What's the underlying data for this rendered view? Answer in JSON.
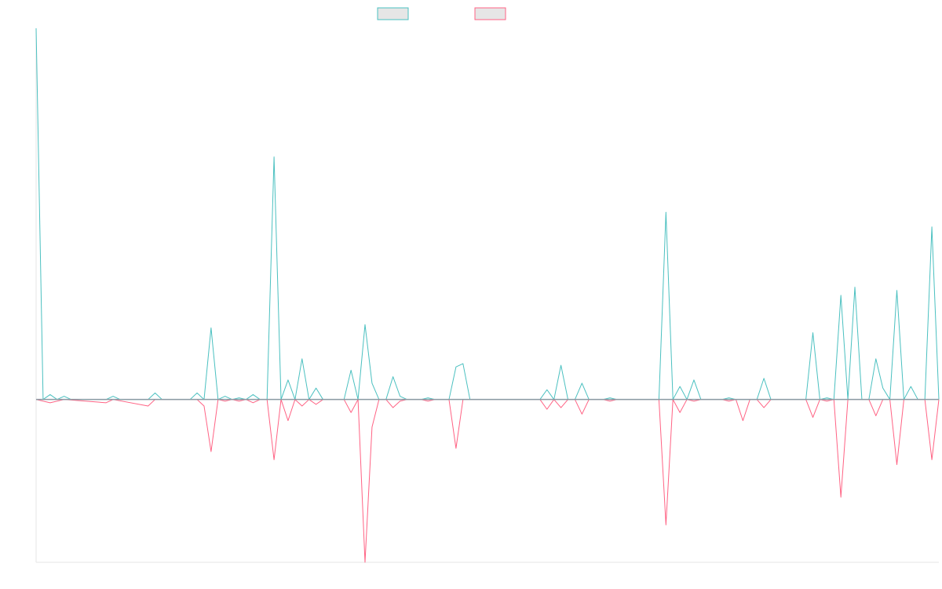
{
  "chart_data": {
    "type": "line",
    "title": "",
    "xlabel": "",
    "ylabel": "",
    "x_count": 130,
    "ylim": [
      -1,
      2.28
    ],
    "grid": false,
    "legend": {
      "position": "top-center"
    },
    "zero_line": true,
    "series": [
      {
        "key": "positive",
        "color": "#4bc0c0",
        "fill": "#e6e6e6",
        "points": [
          [
            0,
            2.28
          ],
          [
            1,
            0.0
          ],
          [
            2,
            0.03
          ],
          [
            3,
            0.0
          ],
          [
            4,
            0.02
          ],
          [
            5,
            0.0
          ],
          [
            10,
            0.0
          ],
          [
            11,
            0.02
          ],
          [
            12,
            0.0
          ],
          [
            16,
            0.0
          ],
          [
            17,
            0.04
          ],
          [
            18,
            0.0
          ],
          [
            22,
            0.0
          ],
          [
            23,
            0.04
          ],
          [
            24,
            0.0
          ],
          [
            25,
            0.44
          ],
          [
            26,
            0.0
          ],
          [
            27,
            0.02
          ],
          [
            28,
            0.0
          ],
          [
            29,
            0.01
          ],
          [
            30,
            0.0
          ],
          [
            31,
            0.03
          ],
          [
            32,
            0.0
          ],
          [
            33,
            0.0
          ],
          [
            34,
            1.49
          ],
          [
            35,
            0.0
          ],
          [
            36,
            0.12
          ],
          [
            37,
            0.0
          ],
          [
            38,
            0.25
          ],
          [
            39,
            0.0
          ],
          [
            40,
            0.07
          ],
          [
            41,
            0.0
          ],
          [
            44,
            0.0
          ],
          [
            45,
            0.18
          ],
          [
            46,
            0.0
          ],
          [
            47,
            0.46
          ],
          [
            48,
            0.1
          ],
          [
            49,
            0.0
          ],
          [
            50,
            0.0
          ],
          [
            51,
            0.14
          ],
          [
            52,
            0.02
          ],
          [
            53,
            0.0
          ],
          [
            55,
            0.0
          ],
          [
            56,
            0.01
          ],
          [
            57,
            0.0
          ],
          [
            59,
            0.0
          ],
          [
            60,
            0.2
          ],
          [
            61,
            0.22
          ],
          [
            62,
            0.0
          ],
          [
            72,
            0.0
          ],
          [
            73,
            0.06
          ],
          [
            74,
            0.0
          ],
          [
            75,
            0.21
          ],
          [
            76,
            0.0
          ],
          [
            77,
            0.0
          ],
          [
            78,
            0.1
          ],
          [
            79,
            0.0
          ],
          [
            81,
            0.0
          ],
          [
            82,
            0.01
          ],
          [
            83,
            0.0
          ],
          [
            89,
            0.0
          ],
          [
            90,
            1.15
          ],
          [
            91,
            0.0
          ],
          [
            92,
            0.08
          ],
          [
            93,
            0.0
          ],
          [
            94,
            0.12
          ],
          [
            95,
            0.0
          ],
          [
            98,
            0.0
          ],
          [
            99,
            0.01
          ],
          [
            100,
            0.0
          ],
          [
            103,
            0.0
          ],
          [
            104,
            0.13
          ],
          [
            105,
            0.0
          ],
          [
            110,
            0.0
          ],
          [
            111,
            0.41
          ],
          [
            112,
            0.0
          ],
          [
            113,
            0.01
          ],
          [
            114,
            0.0
          ],
          [
            115,
            0.64
          ],
          [
            116,
            0.0
          ],
          [
            117,
            0.69
          ],
          [
            118,
            0.0
          ],
          [
            119,
            0.0
          ],
          [
            120,
            0.25
          ],
          [
            121,
            0.07
          ],
          [
            122,
            0.0
          ],
          [
            123,
            0.67
          ],
          [
            124,
            0.0
          ],
          [
            125,
            0.08
          ],
          [
            126,
            0.0
          ],
          [
            127,
            0.0
          ],
          [
            128,
            1.06
          ],
          [
            129,
            0.0
          ]
        ]
      },
      {
        "key": "negative",
        "color": "#ff6384",
        "fill": "#e6e6e6",
        "points": [
          [
            0,
            0.0
          ],
          [
            2,
            -0.02
          ],
          [
            4,
            0.0
          ],
          [
            10,
            -0.02
          ],
          [
            11,
            0.0
          ],
          [
            16,
            -0.04
          ],
          [
            17,
            0.0
          ],
          [
            22,
            0.0
          ],
          [
            23,
            0.0
          ],
          [
            24,
            -0.04
          ],
          [
            25,
            -0.32
          ],
          [
            26,
            0.0
          ],
          [
            27,
            -0.01
          ],
          [
            28,
            0.0
          ],
          [
            29,
            -0.01
          ],
          [
            30,
            0.0
          ],
          [
            31,
            -0.02
          ],
          [
            32,
            0.0
          ],
          [
            33,
            0.0
          ],
          [
            34,
            -0.37
          ],
          [
            35,
            0.0
          ],
          [
            36,
            -0.13
          ],
          [
            37,
            0.0
          ],
          [
            38,
            -0.04
          ],
          [
            39,
            0.0
          ],
          [
            40,
            -0.03
          ],
          [
            41,
            0.0
          ],
          [
            44,
            0.0
          ],
          [
            45,
            -0.08
          ],
          [
            46,
            0.0
          ],
          [
            47,
            -1.0
          ],
          [
            48,
            -0.17
          ],
          [
            49,
            0.0
          ],
          [
            50,
            0.0
          ],
          [
            51,
            -0.05
          ],
          [
            52,
            -0.01
          ],
          [
            53,
            0.0
          ],
          [
            55,
            0.0
          ],
          [
            56,
            -0.01
          ],
          [
            57,
            0.0
          ],
          [
            59,
            0.0
          ],
          [
            60,
            -0.3
          ],
          [
            61,
            0.0
          ],
          [
            72,
            0.0
          ],
          [
            73,
            -0.06
          ],
          [
            74,
            0.0
          ],
          [
            75,
            -0.05
          ],
          [
            76,
            0.0
          ],
          [
            77,
            0.0
          ],
          [
            78,
            -0.09
          ],
          [
            79,
            0.0
          ],
          [
            81,
            0.0
          ],
          [
            82,
            -0.01
          ],
          [
            83,
            0.0
          ],
          [
            89,
            0.0
          ],
          [
            90,
            -0.77
          ],
          [
            91,
            0.0
          ],
          [
            92,
            -0.08
          ],
          [
            93,
            0.0
          ],
          [
            94,
            -0.01
          ],
          [
            95,
            0.0
          ],
          [
            98,
            0.0
          ],
          [
            99,
            -0.01
          ],
          [
            100,
            0.0
          ],
          [
            101,
            -0.13
          ],
          [
            102,
            0.0
          ],
          [
            103,
            0.0
          ],
          [
            104,
            -0.05
          ],
          [
            105,
            0.0
          ],
          [
            110,
            0.0
          ],
          [
            111,
            -0.11
          ],
          [
            112,
            0.0
          ],
          [
            113,
            -0.01
          ],
          [
            114,
            0.0
          ],
          [
            115,
            -0.6
          ],
          [
            116,
            0.0
          ],
          [
            117,
            0.0
          ],
          [
            118,
            0.0
          ],
          [
            119,
            0.0
          ],
          [
            120,
            -0.1
          ],
          [
            121,
            0.0
          ],
          [
            122,
            0.0
          ],
          [
            123,
            -0.4
          ],
          [
            124,
            0.0
          ],
          [
            125,
            0.0
          ],
          [
            126,
            0.0
          ],
          [
            127,
            0.0
          ],
          [
            128,
            -0.37
          ],
          [
            129,
            0.0
          ]
        ]
      }
    ]
  }
}
